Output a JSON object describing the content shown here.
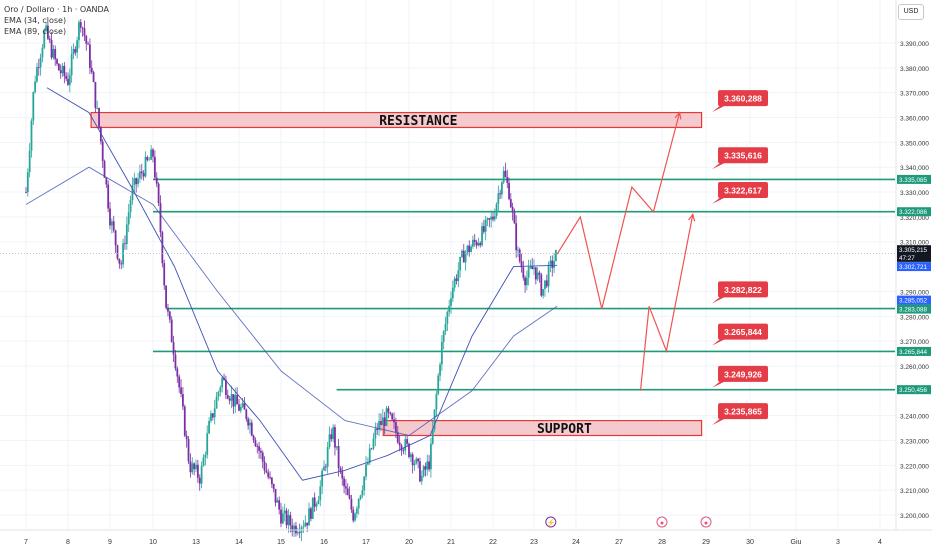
{
  "legend": {
    "title": "Oro / Dollaro · 1h · OANDA",
    "ema1": "EMA (34, close)",
    "ema2": "EMA (89, close)"
  },
  "currency_button": "USD",
  "colors": {
    "up": "#26a69a",
    "down": "#7b2fa3",
    "level_line": "#1e9a7a",
    "zone_fill": "#f3c1c6",
    "zone_stroke": "#e53935",
    "projection": "#ef5350",
    "ema": "#3f51b5",
    "price_label": "#e53d47"
  },
  "chart_data": {
    "type": "candlestick",
    "title": "Oro / Dollaro · 1h · OANDA",
    "ylim": [
      3195000,
      3400000
    ],
    "y_ticks": [
      "3.200,000",
      "3.210,000",
      "3.220,000",
      "3.230,000",
      "3.240,000",
      "3.260,000",
      "3.270,000",
      "3.280,000",
      "3.290,000",
      "3.310,000",
      "3.320,000",
      "3.330,000",
      "3.340,000",
      "3.350,000",
      "3.360,000",
      "3.370,000",
      "3.380,000",
      "3.390,000"
    ],
    "y_tick_values": [
      3200000,
      3210000,
      3220000,
      3230000,
      3240000,
      3260000,
      3270000,
      3280000,
      3290000,
      3310000,
      3320000,
      3330000,
      3340000,
      3350000,
      3360000,
      3370000,
      3380000,
      3390000
    ],
    "x_ticks": [
      "7",
      "8",
      "9",
      "10",
      "13",
      "14",
      "15",
      "16",
      "17",
      "20",
      "21",
      "22",
      "23",
      "24",
      "27",
      "28",
      "29",
      "30",
      "Giu",
      "3",
      "4"
    ],
    "x_tick_index": [
      0,
      1,
      2,
      3,
      4,
      5,
      6,
      7,
      8,
      9,
      10,
      11,
      12,
      13,
      14,
      15,
      16,
      17,
      18,
      19,
      20
    ],
    "price_path": [
      {
        "d": 0,
        "p": 3330000
      },
      {
        "d": 0.2,
        "p": 3375000
      },
      {
        "d": 0.45,
        "p": 3395000
      },
      {
        "d": 0.75,
        "p": 3380000
      },
      {
        "d": 1,
        "p": 3375000
      },
      {
        "d": 1.3,
        "p": 3400000
      },
      {
        "d": 1.5,
        "p": 3385000
      },
      {
        "d": 1.75,
        "p": 3355000
      },
      {
        "d": 2,
        "p": 3320000
      },
      {
        "d": 2.25,
        "p": 3300000
      },
      {
        "d": 2.5,
        "p": 3330000
      },
      {
        "d": 2.8,
        "p": 3340000
      },
      {
        "d": 3,
        "p": 3345000
      },
      {
        "d": 3.15,
        "p": 3320000
      },
      {
        "d": 3.3,
        "p": 3285000
      },
      {
        "d": 3.5,
        "p": 3265000
      },
      {
        "d": 3.7,
        "p": 3240000
      },
      {
        "d": 3.85,
        "p": 3220000
      },
      {
        "d": 4.1,
        "p": 3215000
      },
      {
        "d": 4.3,
        "p": 3235000
      },
      {
        "d": 4.6,
        "p": 3255000
      },
      {
        "d": 4.9,
        "p": 3245000
      },
      {
        "d": 5.2,
        "p": 3240000
      },
      {
        "d": 5.5,
        "p": 3225000
      },
      {
        "d": 5.8,
        "p": 3210000
      },
      {
        "d": 6,
        "p": 3200000
      },
      {
        "d": 6.3,
        "p": 3195000
      },
      {
        "d": 6.6,
        "p": 3198000
      },
      {
        "d": 6.9,
        "p": 3210000
      },
      {
        "d": 7.2,
        "p": 3235000
      },
      {
        "d": 7.4,
        "p": 3215000
      },
      {
        "d": 7.7,
        "p": 3200000
      },
      {
        "d": 8,
        "p": 3218000
      },
      {
        "d": 8.25,
        "p": 3235000
      },
      {
        "d": 8.5,
        "p": 3240000
      },
      {
        "d": 8.8,
        "p": 3230000
      },
      {
        "d": 9.05,
        "p": 3225000
      },
      {
        "d": 9.3,
        "p": 3215000
      },
      {
        "d": 9.5,
        "p": 3222000
      },
      {
        "d": 9.75,
        "p": 3265000
      },
      {
        "d": 10,
        "p": 3290000
      },
      {
        "d": 10.3,
        "p": 3305000
      },
      {
        "d": 10.7,
        "p": 3312000
      },
      {
        "d": 11,
        "p": 3320000
      },
      {
        "d": 11.25,
        "p": 3338000
      },
      {
        "d": 11.4,
        "p": 3330000
      },
      {
        "d": 11.6,
        "p": 3305000
      },
      {
        "d": 11.8,
        "p": 3295000
      },
      {
        "d": 12,
        "p": 3300000
      },
      {
        "d": 12.2,
        "p": 3290000
      },
      {
        "d": 12.4,
        "p": 3300000
      },
      {
        "d": 12.55,
        "p": 3305215
      }
    ],
    "ema34_path": [
      {
        "d": 0.5,
        "p": 3372000
      },
      {
        "d": 1.5,
        "p": 3362000
      },
      {
        "d": 2.5,
        "p": 3332000
      },
      {
        "d": 3.5,
        "p": 3300000
      },
      {
        "d": 4.5,
        "p": 3258000
      },
      {
        "d": 5.5,
        "p": 3238000
      },
      {
        "d": 6.5,
        "p": 3214000
      },
      {
        "d": 7.5,
        "p": 3218000
      },
      {
        "d": 8.5,
        "p": 3224000
      },
      {
        "d": 9.5,
        "p": 3232000
      },
      {
        "d": 10.5,
        "p": 3272000
      },
      {
        "d": 11.5,
        "p": 3300000
      },
      {
        "d": 12.55,
        "p": 3300500
      }
    ],
    "ema89_path": [
      {
        "d": 0,
        "p": 3325000
      },
      {
        "d": 1.5,
        "p": 3340000
      },
      {
        "d": 3,
        "p": 3325000
      },
      {
        "d": 4.5,
        "p": 3290000
      },
      {
        "d": 6,
        "p": 3258000
      },
      {
        "d": 7.5,
        "p": 3238000
      },
      {
        "d": 9,
        "p": 3232000
      },
      {
        "d": 10.5,
        "p": 3250000
      },
      {
        "d": 11.5,
        "p": 3272000
      },
      {
        "d": 12.55,
        "p": 3284000
      }
    ],
    "horizontal_levels": [
      {
        "value": "3.335,085",
        "price": 3335085,
        "from_d": 3.0
      },
      {
        "value": "3.322,086",
        "price": 3322086,
        "from_d": 3.0
      },
      {
        "value": "3.283,088",
        "price": 3283088,
        "from_d": 3.3
      },
      {
        "value": "3.265,844",
        "price": 3265844,
        "from_d": 3.0
      },
      {
        "value": "3.250,456",
        "price": 3250456,
        "from_d": 7.3
      }
    ],
    "zones": [
      {
        "label": "RESISTANCE",
        "top": 3362000,
        "bottom": 3356000,
        "from_d": 1.55,
        "to_d": 15.9
      },
      {
        "label": "SUPPORT",
        "top": 3238000,
        "bottom": 3232000,
        "from_d": 8.4,
        "to_d": 15.9
      }
    ],
    "target_labels": [
      {
        "text": "3.360,288",
        "price": 3365000
      },
      {
        "text": "3.335,616",
        "price": 3342000
      },
      {
        "text": "3.322,617",
        "price": 3328000
      },
      {
        "text": "3.282,822",
        "price": 3288000
      },
      {
        "text": "3.265,844",
        "price": 3271000
      },
      {
        "text": "3.249,926",
        "price": 3254000
      },
      {
        "text": "3.235,865",
        "price": 3239000
      }
    ],
    "projection_path_a": [
      {
        "d": 12.55,
        "p": 3305000
      },
      {
        "d": 13.1,
        "p": 3320000
      },
      {
        "d": 13.6,
        "p": 3283000
      },
      {
        "d": 14.3,
        "p": 3332000
      },
      {
        "d": 14.8,
        "p": 3322000
      },
      {
        "d": 15.4,
        "p": 3362000
      }
    ],
    "projection_path_b": [
      {
        "d": 14.5,
        "p": 3250000
      },
      {
        "d": 14.7,
        "p": 3284000
      },
      {
        "d": 15.1,
        "p": 3266000
      },
      {
        "d": 15.7,
        "p": 3321000
      }
    ],
    "axis_tags": [
      {
        "text": "3.335,085",
        "price": 3335085,
        "color": "#1e9a7a"
      },
      {
        "text": "3.322,086",
        "price": 3322086,
        "color": "#1e9a7a"
      },
      {
        "text": "3.305,215",
        "price": 3306800,
        "color": "#131722"
      },
      {
        "text": "47:27",
        "price": 3303700,
        "color": "#131722"
      },
      {
        "text": "3.302,721",
        "price": 3300000,
        "color": "#2962ff"
      },
      {
        "text": "3.285,052",
        "price": 3286500,
        "color": "#2962ff"
      },
      {
        "text": "3.283,088",
        "price": 3282900,
        "color": "#1e9a7a"
      },
      {
        "text": "3.265,844",
        "price": 3265844,
        "color": "#1e9a7a"
      },
      {
        "text": "3.250,456",
        "price": 3250456,
        "color": "#1e9a7a"
      }
    ]
  }
}
